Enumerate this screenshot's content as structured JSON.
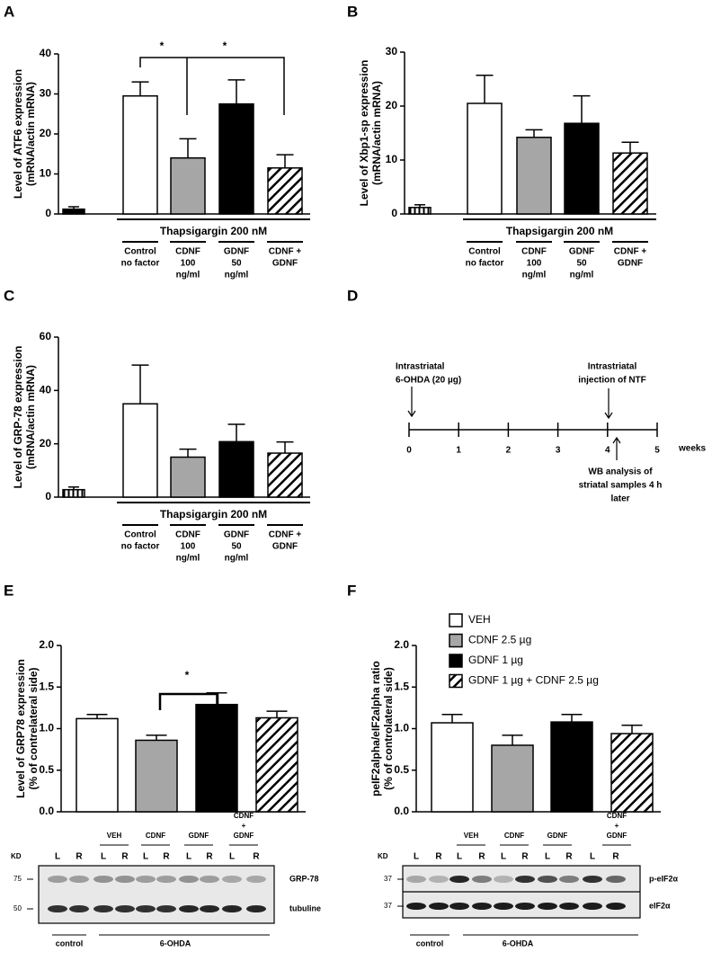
{
  "panels": [
    "A",
    "B",
    "C",
    "D",
    "E",
    "F"
  ],
  "chart_data": [
    {
      "type": "bar",
      "ylabel": [
        "Level of ATF6 expression",
        "(mRNA/actin mRNA)"
      ],
      "ylim": [
        0,
        40
      ],
      "yticks": [
        0,
        10,
        20,
        30,
        40
      ],
      "values": [
        1.2,
        29.5,
        14,
        27.5,
        11.5
      ],
      "errors": [
        0.6,
        3.5,
        4.8,
        6,
        3.3
      ],
      "patterns": [
        "black",
        "white",
        "gray",
        "black",
        "diag"
      ],
      "group": "Thapsigargin 200 nM",
      "categories": [
        null,
        [
          "Control",
          "no factor"
        ],
        [
          "CDNF",
          "100",
          "ng/ml"
        ],
        [
          "GDNF",
          "50",
          "ng/ml"
        ],
        [
          "CDNF +",
          "GDNF"
        ]
      ],
      "annotations": [
        "*",
        "*"
      ]
    },
    {
      "type": "bar",
      "ylabel": [
        "Level of Xbp1-sp expression",
        "(mRNA/actin mRNA)"
      ],
      "ylim": [
        0,
        30
      ],
      "yticks": [
        0,
        10,
        20,
        30
      ],
      "values": [
        1.2,
        20.5,
        14.2,
        16.8,
        11.3
      ],
      "errors": [
        0.5,
        5.2,
        1.4,
        5.1,
        2
      ],
      "patterns": [
        "vstripe",
        "white",
        "gray",
        "black",
        "diag"
      ],
      "group": "Thapsigargin 200 nM",
      "categories": [
        null,
        [
          "Control",
          "no factor"
        ],
        [
          "CDNF",
          "100",
          "ng/ml"
        ],
        [
          "GDNF",
          "50",
          "ng/ml"
        ],
        [
          "CDNF +",
          "GDNF"
        ]
      ]
    },
    {
      "type": "bar",
      "ylabel": [
        "Level of GRP-78 expression",
        "(mRNA/actin mRNA)"
      ],
      "ylim": [
        0,
        60
      ],
      "yticks": [
        0,
        20,
        40,
        60
      ],
      "values": [
        2.8,
        35,
        15,
        20.8,
        16.5
      ],
      "errors": [
        1,
        14.5,
        3,
        6.5,
        4.2
      ],
      "patterns": [
        "vstripe",
        "white",
        "gray",
        "black",
        "diag"
      ],
      "group": "Thapsigargin 200 nM",
      "categories": [
        null,
        [
          "Control",
          "no factor"
        ],
        [
          "CDNF",
          "100",
          "ng/ml"
        ],
        [
          "GDNF",
          "50",
          "ng/ml"
        ],
        [
          "CDNF +",
          "GDNF"
        ]
      ]
    },
    {
      "type": "bar",
      "ylabel": [
        "Level of GRP78 expression",
        "(% of contrelateral side)"
      ],
      "ylim": [
        0,
        2
      ],
      "yticks": [
        {
          "value": 0,
          "label": "0.0"
        },
        0.5,
        {
          "value": 1,
          "label": "1.0"
        },
        1.5,
        {
          "value": 2,
          "label": "2.0"
        }
      ],
      "values": [
        1.12,
        0.86,
        1.29,
        1.13
      ],
      "errors": [
        0.05,
        0.06,
        0.14,
        0.08
      ],
      "patterns": [
        "white",
        "gray",
        "black",
        "diag"
      ],
      "annotations": [
        "*"
      ]
    },
    {
      "type": "bar",
      "ylabel": [
        "peIF2alpha/eIF2alpha ratio",
        "(% of controlateral side)"
      ],
      "ylim": [
        0,
        2
      ],
      "yticks": [
        {
          "value": 0,
          "label": "0.0"
        },
        0.5,
        {
          "value": 1,
          "label": "1.0"
        },
        1.5,
        {
          "value": 2,
          "label": "2.0"
        }
      ],
      "values": [
        1.07,
        0.8,
        1.08,
        0.94
      ],
      "errors": [
        0.1,
        0.12,
        0.09,
        0.1
      ],
      "patterns": [
        "white",
        "gray",
        "black",
        "diag"
      ],
      "legend": [
        "VEH",
        "CDNF 2.5 µg",
        "GDNF 1 µg",
        "GDNF 1 µg + CDNF 2.5 µg"
      ]
    }
  ],
  "timeline": {
    "ticks": [
      0,
      1,
      2,
      3,
      4,
      5
    ],
    "unit": "weeks",
    "events": [
      [
        "Intrastriatal",
        "6-OHDA (20 µg)"
      ],
      [
        "Intrastriatal",
        "injection of NTF"
      ],
      [
        "WB analysis of",
        "striatal samples 4 h",
        "later"
      ]
    ]
  },
  "blots": [
    {
      "kd": "KD",
      "lanes": [
        "L",
        "R",
        "L",
        "R",
        "L",
        "R",
        "L",
        "R",
        "L",
        "R"
      ],
      "groups": [
        [
          "VEH"
        ],
        [
          "CDNF"
        ],
        [
          "GDNF"
        ],
        [
          "CDNF",
          "+",
          "GDNF"
        ]
      ],
      "markers": [
        "75",
        "50"
      ],
      "bands": [
        "GRP-78",
        "tubuline"
      ],
      "conditions": [
        "control",
        "6-OHDA"
      ]
    },
    {
      "kd": "KD",
      "lanes": [
        "L",
        "R",
        "L",
        "R",
        "L",
        "R",
        "L",
        "R",
        "L",
        "R"
      ],
      "groups": [
        [
          "VEH"
        ],
        [
          "CDNF"
        ],
        [
          "GDNF"
        ],
        [
          "CDNF",
          "+",
          "GDNF"
        ]
      ],
      "markers": [
        "37",
        "37"
      ],
      "bands": [
        "p-eIF2α",
        "eIF2α"
      ],
      "conditions": [
        "control",
        "6-OHDA"
      ]
    }
  ]
}
